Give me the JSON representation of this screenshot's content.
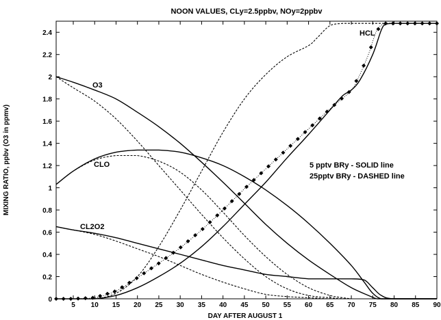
{
  "chart_data": {
    "type": "line",
    "title": "NOON VALUES, CLy=2.5ppbv, NOy=2ppbv",
    "xlabel": "DAY AFTER AUGUST 1",
    "ylabel": "MIXING RATIO, ppbv (O3 in ppmv)",
    "xlim": [
      1,
      90
    ],
    "ylim": [
      0,
      2.5
    ],
    "xticks": [
      5,
      10,
      15,
      20,
      25,
      30,
      35,
      40,
      45,
      50,
      55,
      60,
      65,
      70,
      75,
      80,
      85,
      90
    ],
    "yticks": [
      "0",
      "0.2",
      "0.4",
      "0.6",
      "0.8",
      "1",
      "1.2",
      "1.4",
      "1.6",
      "1.8",
      "2",
      "2.2",
      "2.4"
    ],
    "grid": false,
    "annotations": [
      "5 pptv BRy - SOLID line",
      "25pptv BRy - DASHED line"
    ],
    "series": [
      {
        "name": "O3",
        "style": "solid",
        "x": [
          1,
          5,
          10,
          15,
          20,
          25,
          30,
          35,
          40,
          45,
          50,
          55,
          60,
          65,
          70,
          74,
          76,
          78,
          80,
          90
        ],
        "y": [
          2.0,
          1.95,
          1.88,
          1.8,
          1.68,
          1.55,
          1.4,
          1.23,
          1.05,
          0.86,
          0.67,
          0.5,
          0.35,
          0.22,
          0.1,
          0.03,
          0.0,
          0.0,
          0.0,
          0.0
        ]
      },
      {
        "name": "O3",
        "style": "dashed",
        "x": [
          1,
          5,
          10,
          15,
          20,
          25,
          30,
          35,
          40,
          45,
          50,
          55,
          60,
          65,
          70,
          90
        ],
        "y": [
          2.0,
          1.9,
          1.78,
          1.62,
          1.42,
          1.2,
          0.98,
          0.76,
          0.55,
          0.36,
          0.2,
          0.09,
          0.03,
          0.01,
          0.0,
          0.0
        ]
      },
      {
        "name": "CLO",
        "style": "solid",
        "x": [
          1,
          5,
          10,
          15,
          20,
          25,
          30,
          35,
          40,
          45,
          50,
          55,
          60,
          65,
          70,
          73,
          75,
          77,
          80,
          90
        ],
        "y": [
          1.03,
          1.15,
          1.26,
          1.32,
          1.34,
          1.34,
          1.32,
          1.27,
          1.2,
          1.1,
          0.98,
          0.84,
          0.68,
          0.5,
          0.3,
          0.15,
          0.05,
          0.0,
          0.0,
          0.0
        ]
      },
      {
        "name": "CLO",
        "style": "dashed",
        "x": [
          1,
          5,
          10,
          15,
          20,
          25,
          30,
          35,
          40,
          45,
          50,
          55,
          60,
          65,
          68,
          70,
          72,
          90
        ],
        "y": [
          1.03,
          1.15,
          1.25,
          1.29,
          1.29,
          1.24,
          1.14,
          0.98,
          0.78,
          0.57,
          0.38,
          0.22,
          0.1,
          0.03,
          0.01,
          0.0,
          0.0,
          0.0
        ]
      },
      {
        "name": "CL2O2",
        "style": "solid",
        "x": [
          1,
          5,
          10,
          15,
          20,
          25,
          30,
          35,
          40,
          45,
          50,
          55,
          60,
          65,
          70,
          73,
          75,
          77,
          80,
          90
        ],
        "y": [
          0.65,
          0.62,
          0.59,
          0.55,
          0.5,
          0.45,
          0.4,
          0.35,
          0.3,
          0.26,
          0.22,
          0.2,
          0.18,
          0.18,
          0.18,
          0.17,
          0.1,
          0.03,
          0.0,
          0.0
        ]
      },
      {
        "name": "CL2O2",
        "style": "dashed",
        "x": [
          1,
          5,
          10,
          15,
          20,
          25,
          30,
          35,
          40,
          45,
          50,
          55,
          60,
          65,
          70,
          90
        ],
        "y": [
          0.65,
          0.62,
          0.58,
          0.52,
          0.45,
          0.38,
          0.3,
          0.22,
          0.15,
          0.09,
          0.04,
          0.02,
          0.01,
          0.0,
          0.0,
          0.0
        ]
      },
      {
        "name": "HCL",
        "style": "solid",
        "x": [
          1,
          5,
          10,
          15,
          20,
          25,
          30,
          35,
          40,
          45,
          50,
          55,
          60,
          65,
          68,
          70,
          72,
          75,
          77,
          78,
          80,
          85,
          90
        ],
        "y": [
          0.0,
          0.0,
          0.0,
          0.03,
          0.1,
          0.2,
          0.32,
          0.47,
          0.65,
          0.85,
          1.05,
          1.27,
          1.48,
          1.7,
          1.83,
          1.88,
          1.97,
          2.2,
          2.42,
          2.47,
          2.48,
          2.48,
          2.48
        ]
      },
      {
        "name": "HCL",
        "style": "dashed",
        "x": [
          1,
          5,
          10,
          15,
          20,
          25,
          30,
          35,
          40,
          45,
          50,
          55,
          60,
          62,
          65,
          68,
          70,
          72,
          75,
          78,
          80,
          85,
          90
        ],
        "y": [
          0.0,
          0.0,
          0.0,
          0.05,
          0.2,
          0.47,
          0.8,
          1.15,
          1.5,
          1.8,
          2.02,
          2.18,
          2.28,
          2.35,
          2.46,
          2.48,
          2.48,
          2.48,
          2.48,
          2.48,
          2.48,
          2.48,
          2.48
        ]
      },
      {
        "name": "HCL",
        "style": "dotted-diamond",
        "x": [
          1,
          5,
          10,
          15,
          20,
          25,
          30,
          35,
          40,
          45,
          50,
          55,
          60,
          65,
          70,
          72,
          74,
          76,
          78,
          80,
          85,
          90
        ],
        "y": [
          0.0,
          0.0,
          0.01,
          0.07,
          0.19,
          0.32,
          0.46,
          0.62,
          0.8,
          0.99,
          1.17,
          1.35,
          1.53,
          1.71,
          1.88,
          2.02,
          2.2,
          2.42,
          2.48,
          2.48,
          2.48,
          2.48
        ]
      }
    ],
    "line_labels": [
      {
        "text": "O3",
        "series": "O3"
      },
      {
        "text": "CLO",
        "series": "CLO"
      },
      {
        "text": "CL2O2",
        "series": "CL2O2"
      },
      {
        "text": "HCL",
        "series": "HCL"
      }
    ]
  }
}
